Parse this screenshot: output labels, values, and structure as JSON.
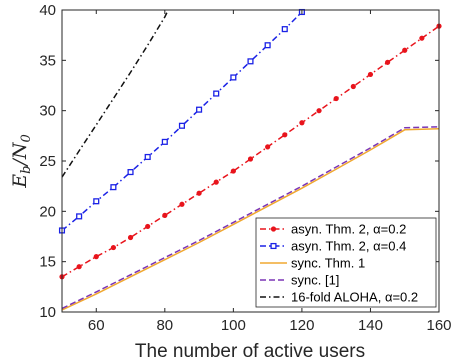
{
  "chart_data": {
    "type": "line",
    "xlabel": "The number of active users",
    "ylabel_main": "E",
    "ylabel_sub1": "b",
    "ylabel_div": "/N",
    "ylabel_sub2": "0",
    "xlim": [
      50,
      160
    ],
    "ylim": [
      10,
      40
    ],
    "xticks": [
      60,
      80,
      100,
      120,
      140,
      160
    ],
    "yticks": [
      10,
      15,
      20,
      25,
      30,
      35,
      40
    ],
    "grid": false,
    "legend_position": "bottom-right",
    "series": [
      {
        "name": "asyn. Thm. 2, α=0.2",
        "color": "#e8141c",
        "dash": "6,3,1.5,3",
        "marker": "dot",
        "x": [
          50,
          55,
          60,
          65,
          70,
          75,
          80,
          85,
          90,
          95,
          100,
          105,
          110,
          115,
          120,
          125,
          130,
          135,
          140,
          145,
          150,
          155,
          160
        ],
        "y": [
          13.5,
          14.5,
          15.5,
          16.4,
          17.4,
          18.5,
          19.6,
          20.7,
          21.8,
          22.9,
          24.0,
          25.2,
          26.4,
          27.6,
          28.8,
          30.0,
          31.2,
          32.4,
          33.6,
          34.8,
          36.0,
          37.2,
          38.4
        ]
      },
      {
        "name": "asyn. Thm. 2, α=0.4",
        "color": "#1b22e6",
        "dash": "6,3,1.5,3",
        "marker": "square",
        "x": [
          50,
          55,
          60,
          65,
          70,
          75,
          80,
          85,
          90,
          95,
          100,
          105,
          110,
          115,
          120
        ],
        "y": [
          18.1,
          19.5,
          21.0,
          22.4,
          23.9,
          25.4,
          26.9,
          28.5,
          30.1,
          31.7,
          33.3,
          34.9,
          36.5,
          38.1,
          39.8
        ]
      },
      {
        "name": "sync. Thm. 1",
        "color": "#f0a830",
        "dash": "",
        "marker": "none",
        "x": [
          50,
          60,
          70,
          80,
          90,
          100,
          110,
          120,
          130,
          140,
          150,
          160
        ],
        "y": [
          10.2,
          11.8,
          13.5,
          15.2,
          16.9,
          18.7,
          20.5,
          22.3,
          24.2,
          26.1,
          28.1,
          28.2
        ]
      },
      {
        "name": "sync. [1]",
        "color": "#7b35b5",
        "dash": "6,3",
        "marker": "none",
        "x": [
          50,
          60,
          70,
          80,
          90,
          100,
          110,
          120,
          130,
          140,
          150,
          160
        ],
        "y": [
          10.35,
          12.0,
          13.7,
          15.4,
          17.1,
          18.9,
          20.7,
          22.5,
          24.4,
          26.3,
          28.3,
          28.4
        ]
      },
      {
        "name": "16-fold ALOHA, α=0.2",
        "color": "#111111",
        "dash": "6,3,1.5,3",
        "marker": "none",
        "x": [
          50,
          55,
          60,
          65,
          70,
          75,
          80,
          81
        ],
        "y": [
          23.4,
          26.0,
          28.6,
          31.2,
          33.8,
          36.5,
          39.3,
          40.0
        ]
      }
    ]
  }
}
